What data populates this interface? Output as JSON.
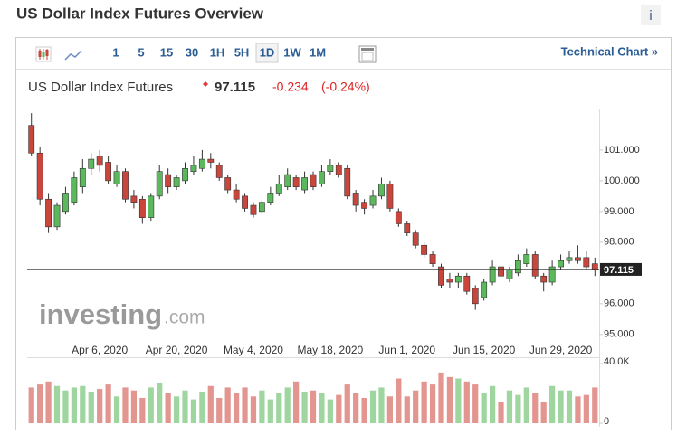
{
  "page": {
    "title": "US Dollar Index Futures Overview",
    "info": "i",
    "intervals": [
      "1",
      "5",
      "15",
      "30",
      "1H",
      "5H",
      "1D",
      "1W",
      "1M"
    ],
    "active_interval": "1D",
    "technical_link": "Technical Chart »",
    "instrument": "US Dollar Index Futures",
    "change": -0.234,
    "change_pct": "(-0.24%)",
    "watermark": [
      "investing",
      ".com"
    ]
  },
  "chart_data": {
    "type": "candlestick",
    "last": 97.115,
    "categories": [
      null,
      null,
      null,
      null,
      null,
      null,
      null,
      null,
      "Apr 6, 2020",
      null,
      null,
      null,
      null,
      null,
      null,
      null,
      null,
      "Apr 20, 2020",
      null,
      null,
      null,
      null,
      null,
      null,
      null,
      null,
      "May 4, 2020",
      null,
      null,
      null,
      null,
      null,
      null,
      null,
      null,
      "May 18, 2020",
      null,
      null,
      null,
      null,
      null,
      null,
      null,
      null,
      "Jun 1, 2020",
      null,
      null,
      null,
      null,
      null,
      null,
      null,
      null,
      "Jun 15, 2020",
      null,
      null,
      null,
      null,
      null,
      null,
      null,
      null,
      "Jun 29, 2020",
      null,
      null,
      null,
      null
    ],
    "open": [
      101.8,
      100.9,
      99.4,
      98.5,
      99.0,
      99.3,
      99.8,
      100.4,
      100.8,
      100.6,
      99.9,
      100.3,
      99.5,
      99.4,
      98.8,
      99.5,
      100.2,
      99.8,
      100.0,
      100.3,
      100.4,
      100.7,
      100.5,
      100.1,
      99.7,
      99.5,
      99.2,
      99.0,
      99.3,
      99.6,
      99.8,
      100.1,
      99.7,
      100.2,
      99.9,
      100.3,
      100.5,
      100.4,
      99.6,
      99.3,
      99.2,
      99.5,
      99.9,
      99.0,
      98.6,
      98.3,
      97.9,
      97.6,
      97.2,
      96.8,
      96.7,
      96.9,
      96.5,
      96.2,
      96.7,
      97.2,
      96.8,
      97.0,
      97.3,
      97.6,
      96.9,
      96.7,
      97.2,
      97.4,
      97.5,
      97.5,
      97.3
    ],
    "high": [
      102.2,
      101.1,
      99.6,
      99.3,
      99.8,
      100.3,
      100.7,
      100.9,
      101.0,
      100.8,
      100.5,
      100.4,
      99.7,
      99.5,
      99.6,
      100.5,
      100.4,
      100.2,
      100.6,
      100.8,
      101.0,
      100.9,
      100.6,
      100.2,
      99.9,
      99.6,
      99.3,
      99.4,
      99.8,
      100.2,
      100.4,
      100.2,
      100.3,
      100.3,
      100.5,
      100.7,
      100.6,
      100.5,
      99.7,
      99.4,
      99.7,
      100.1,
      100.0,
      99.1,
      98.7,
      98.4,
      98.0,
      97.7,
      97.3,
      97.0,
      97.0,
      97.0,
      96.6,
      96.8,
      97.4,
      97.3,
      97.2,
      97.6,
      97.8,
      97.7,
      97.0,
      97.4,
      97.6,
      97.7,
      97.9,
      97.7,
      97.5
    ],
    "low": [
      100.8,
      99.2,
      98.3,
      98.4,
      98.9,
      99.2,
      99.6,
      100.2,
      100.3,
      99.9,
      99.8,
      99.3,
      99.1,
      98.6,
      98.7,
      99.4,
      99.6,
      99.7,
      99.9,
      100.2,
      100.3,
      100.4,
      100.0,
      99.6,
      99.3,
      99.0,
      98.8,
      98.9,
      99.2,
      99.5,
      99.7,
      99.7,
      99.6,
      99.7,
      99.8,
      100.2,
      100.1,
      99.4,
      99.0,
      98.9,
      99.1,
      99.4,
      99.0,
      98.5,
      98.2,
      97.8,
      97.5,
      97.2,
      96.5,
      96.5,
      96.5,
      96.3,
      95.8,
      96.1,
      96.6,
      96.8,
      96.7,
      96.9,
      97.2,
      96.8,
      96.4,
      96.6,
      97.1,
      97.3,
      97.3,
      97.1,
      96.9
    ],
    "close": [
      100.9,
      99.4,
      98.5,
      99.2,
      99.6,
      100.1,
      100.4,
      100.7,
      100.5,
      100.0,
      100.3,
      99.4,
      99.3,
      98.8,
      99.5,
      100.3,
      99.8,
      100.1,
      100.4,
      100.5,
      100.7,
      100.6,
      100.1,
      99.7,
      99.4,
      99.1,
      98.9,
      99.3,
      99.6,
      99.9,
      100.2,
      99.8,
      100.1,
      99.8,
      100.3,
      100.5,
      100.2,
      99.5,
      99.2,
      99.1,
      99.5,
      99.9,
      99.1,
      98.6,
      98.3,
      97.9,
      97.6,
      97.3,
      96.6,
      96.7,
      96.9,
      96.4,
      96.0,
      96.7,
      97.2,
      96.9,
      97.1,
      97.4,
      97.6,
      96.9,
      96.7,
      97.2,
      97.4,
      97.5,
      97.4,
      97.2,
      97.1
    ],
    "volume": [
      24000,
      26000,
      28000,
      25000,
      22000,
      24000,
      25000,
      21000,
      23000,
      26000,
      18000,
      24000,
      22000,
      17000,
      24000,
      27000,
      20000,
      18000,
      22000,
      16000,
      21000,
      25000,
      17000,
      24000,
      20000,
      24000,
      18000,
      22000,
      16000,
      20000,
      24000,
      28000,
      21000,
      22000,
      20000,
      16000,
      19000,
      26000,
      20000,
      17000,
      22000,
      24000,
      18000,
      30000,
      18000,
      22000,
      28000,
      26000,
      34000,
      31000,
      30000,
      28000,
      26000,
      20000,
      25000,
      14000,
      22000,
      19000,
      24000,
      20000,
      14000,
      25000,
      22000,
      22000,
      18000,
      19000,
      24000
    ],
    "ylim": [
      94.7,
      102.35
    ],
    "yticks": [
      {
        "value": 95,
        "label": "95.000"
      },
      {
        "value": 96,
        "label": "96.000"
      },
      {
        "value": 98,
        "label": "98.000"
      },
      {
        "value": 99,
        "label": "99.000"
      },
      {
        "value": 100,
        "label": "100.000"
      },
      {
        "value": 101,
        "label": "101.000"
      }
    ],
    "vol_ylim": [
      0,
      40000
    ],
    "vol_yticks": [
      {
        "value": 0,
        "label": "0"
      },
      {
        "value": 40000,
        "label": "40.0K"
      }
    ],
    "up_color": "#5cb85c",
    "down_color": "#c9463d",
    "vol_up_color": "#9fd69f",
    "vol_down_color": "#e39590"
  }
}
